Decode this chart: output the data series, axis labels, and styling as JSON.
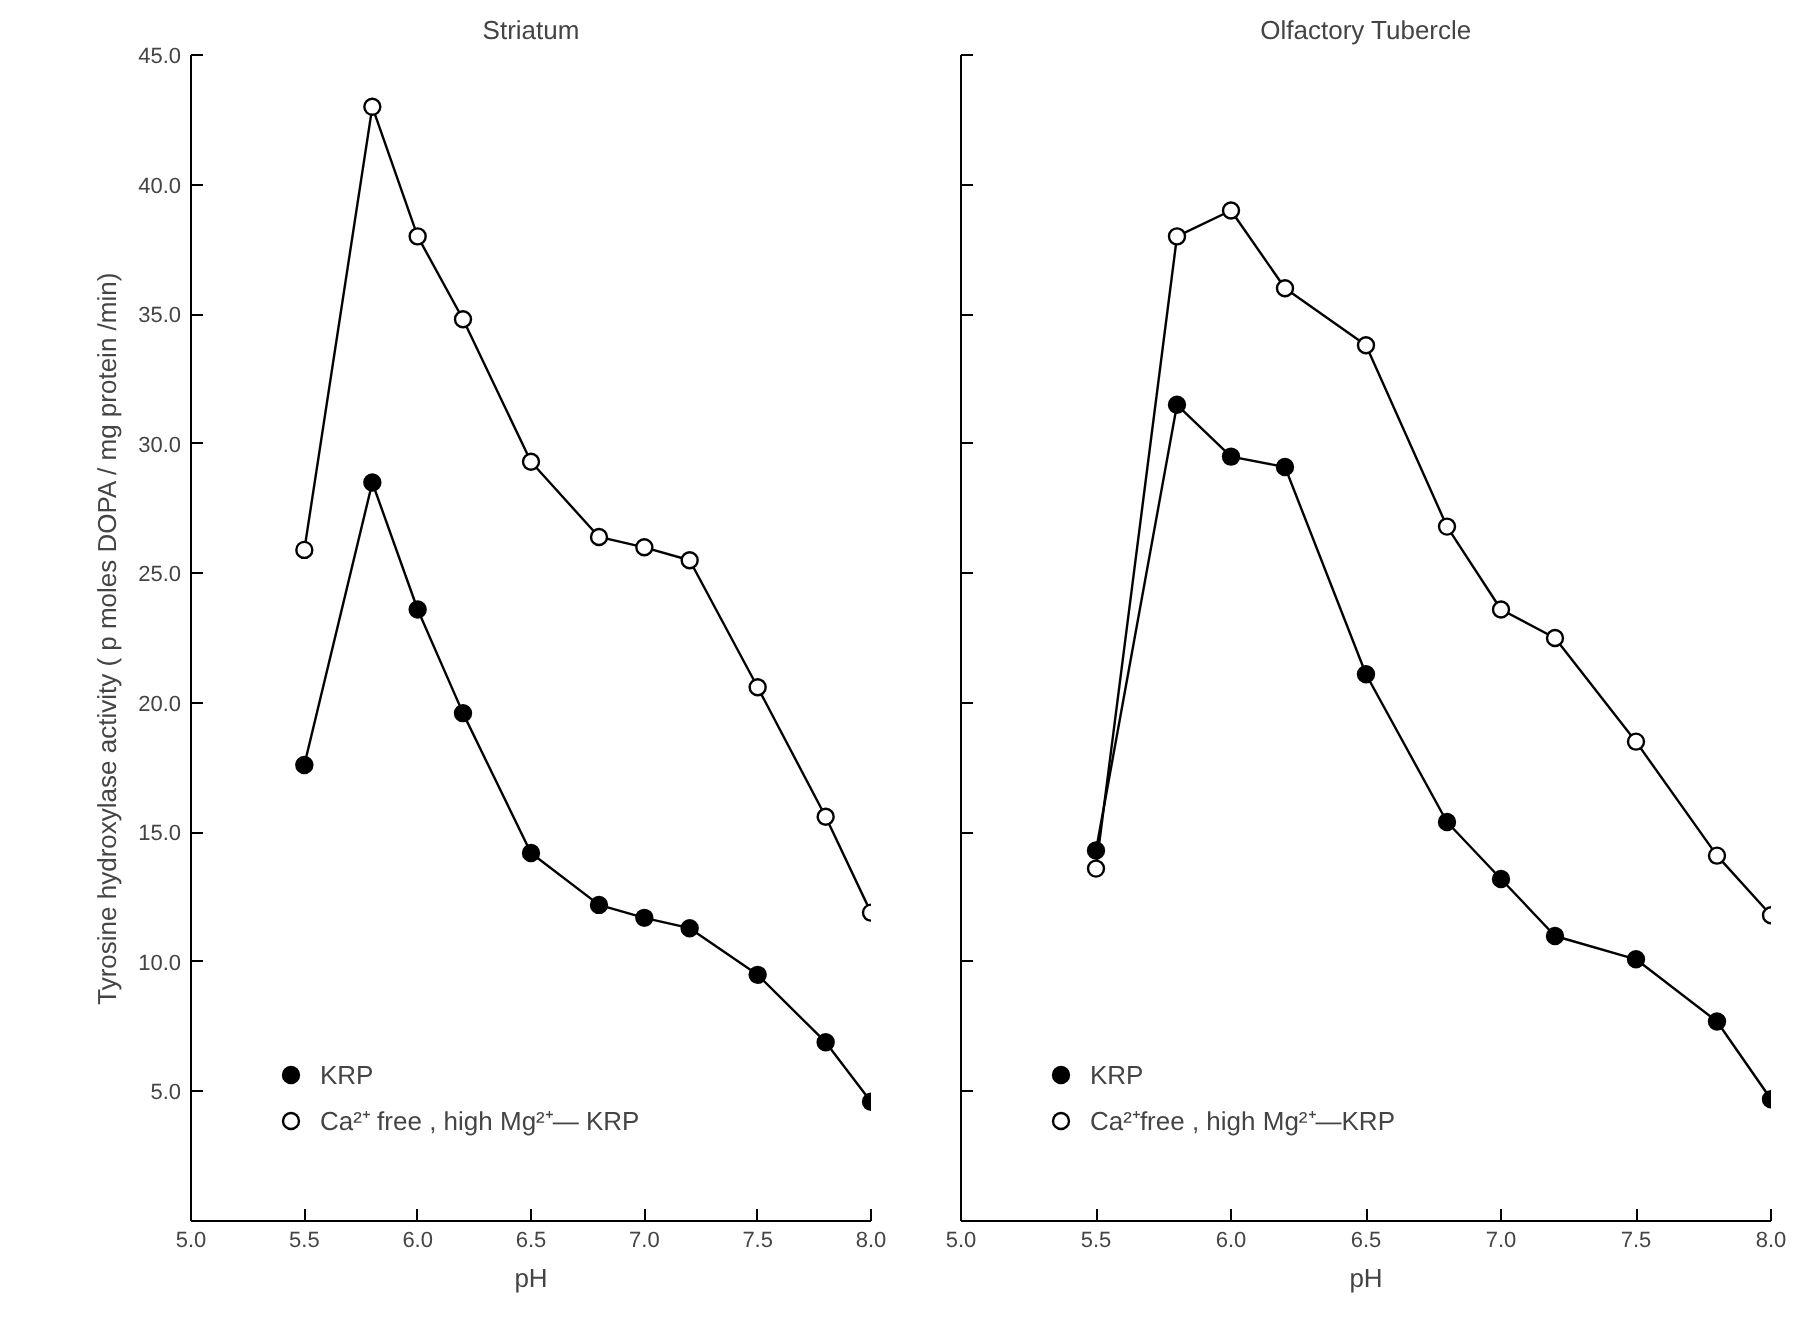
{
  "chart_data": [
    {
      "type": "line",
      "title": "Striatum",
      "xlabel": "pH",
      "ylabel": "Tyrosine hydroxylase activity ( p moles DOPA / mg protein /min)",
      "x": [
        5.5,
        5.8,
        6.0,
        6.2,
        6.5,
        6.8,
        7.0,
        7.2,
        7.5,
        7.8,
        8.0
      ],
      "series": [
        {
          "name": "KRP",
          "color": "#000000",
          "values": [
            17.6,
            28.5,
            23.6,
            19.6,
            14.2,
            12.2,
            11.7,
            11.3,
            9.5,
            6.9,
            4.6
          ]
        },
        {
          "name": "Ca²⁺ free , high Mg²⁺— KRP",
          "color": "#ffffff",
          "values": [
            25.9,
            43.0,
            38.0,
            34.8,
            29.3,
            26.4,
            26.0,
            25.5,
            20.6,
            15.6,
            11.9
          ]
        }
      ],
      "xlim": [
        5.0,
        8.0
      ],
      "xticks": [
        {
          "value": 5.0,
          "label": "5.0"
        },
        5.5,
        {
          "value": 6.0,
          "label": "6.0"
        },
        6.5,
        {
          "value": 7.0,
          "label": "7.0"
        },
        7.5,
        {
          "value": 8.0,
          "label": "8.0"
        }
      ],
      "ylim": [
        0,
        45
      ],
      "yticks": [
        {
          "value": 5,
          "label": "5.0"
        },
        {
          "value": 10,
          "label": "10.0"
        },
        {
          "value": 15,
          "label": "15.0"
        },
        {
          "value": 20,
          "label": "20.0"
        },
        {
          "value": 25,
          "label": "25.0"
        },
        {
          "value": 30,
          "label": "30.0"
        },
        {
          "value": 35,
          "label": "35.0"
        },
        {
          "value": 40,
          "label": "40.0"
        },
        {
          "value": 45,
          "label": "45.0"
        }
      ],
      "marker": "circle",
      "legend": "bottom left",
      "grid": false
    },
    {
      "type": "line",
      "title": "Olfactory Tubercle",
      "xlabel": "pH",
      "x": [
        5.5,
        5.8,
        6.0,
        6.2,
        6.5,
        6.8,
        7.0,
        7.2,
        7.5,
        7.8,
        8.0
      ],
      "series": [
        {
          "name": "KRP",
          "color": "#000000",
          "values": [
            14.3,
            31.5,
            29.5,
            29.1,
            21.1,
            15.4,
            13.2,
            11.0,
            10.1,
            7.7,
            4.7
          ]
        },
        {
          "name": "Ca²⁺free , high Mg²⁺—KRP",
          "color": "#ffffff",
          "values": [
            13.6,
            38.0,
            39.0,
            36.0,
            33.8,
            26.8,
            23.6,
            22.5,
            18.5,
            14.1,
            11.8
          ]
        }
      ],
      "xlim": [
        5.0,
        8.0
      ],
      "xticks": [
        {
          "value": 5.0,
          "label": "5.0"
        },
        5.5,
        {
          "value": 6.0,
          "label": "6.0"
        },
        6.5,
        {
          "value": 7.0,
          "label": "7.0"
        },
        7.5,
        {
          "value": 8.0,
          "label": "8.0"
        }
      ],
      "ylim": [
        0,
        45
      ],
      "yticks": [
        5,
        10,
        15,
        20,
        25,
        30,
        35,
        40,
        45
      ],
      "tick_labels": "x",
      "marker": "circle",
      "legend": "bottom left",
      "grid": false
    }
  ]
}
